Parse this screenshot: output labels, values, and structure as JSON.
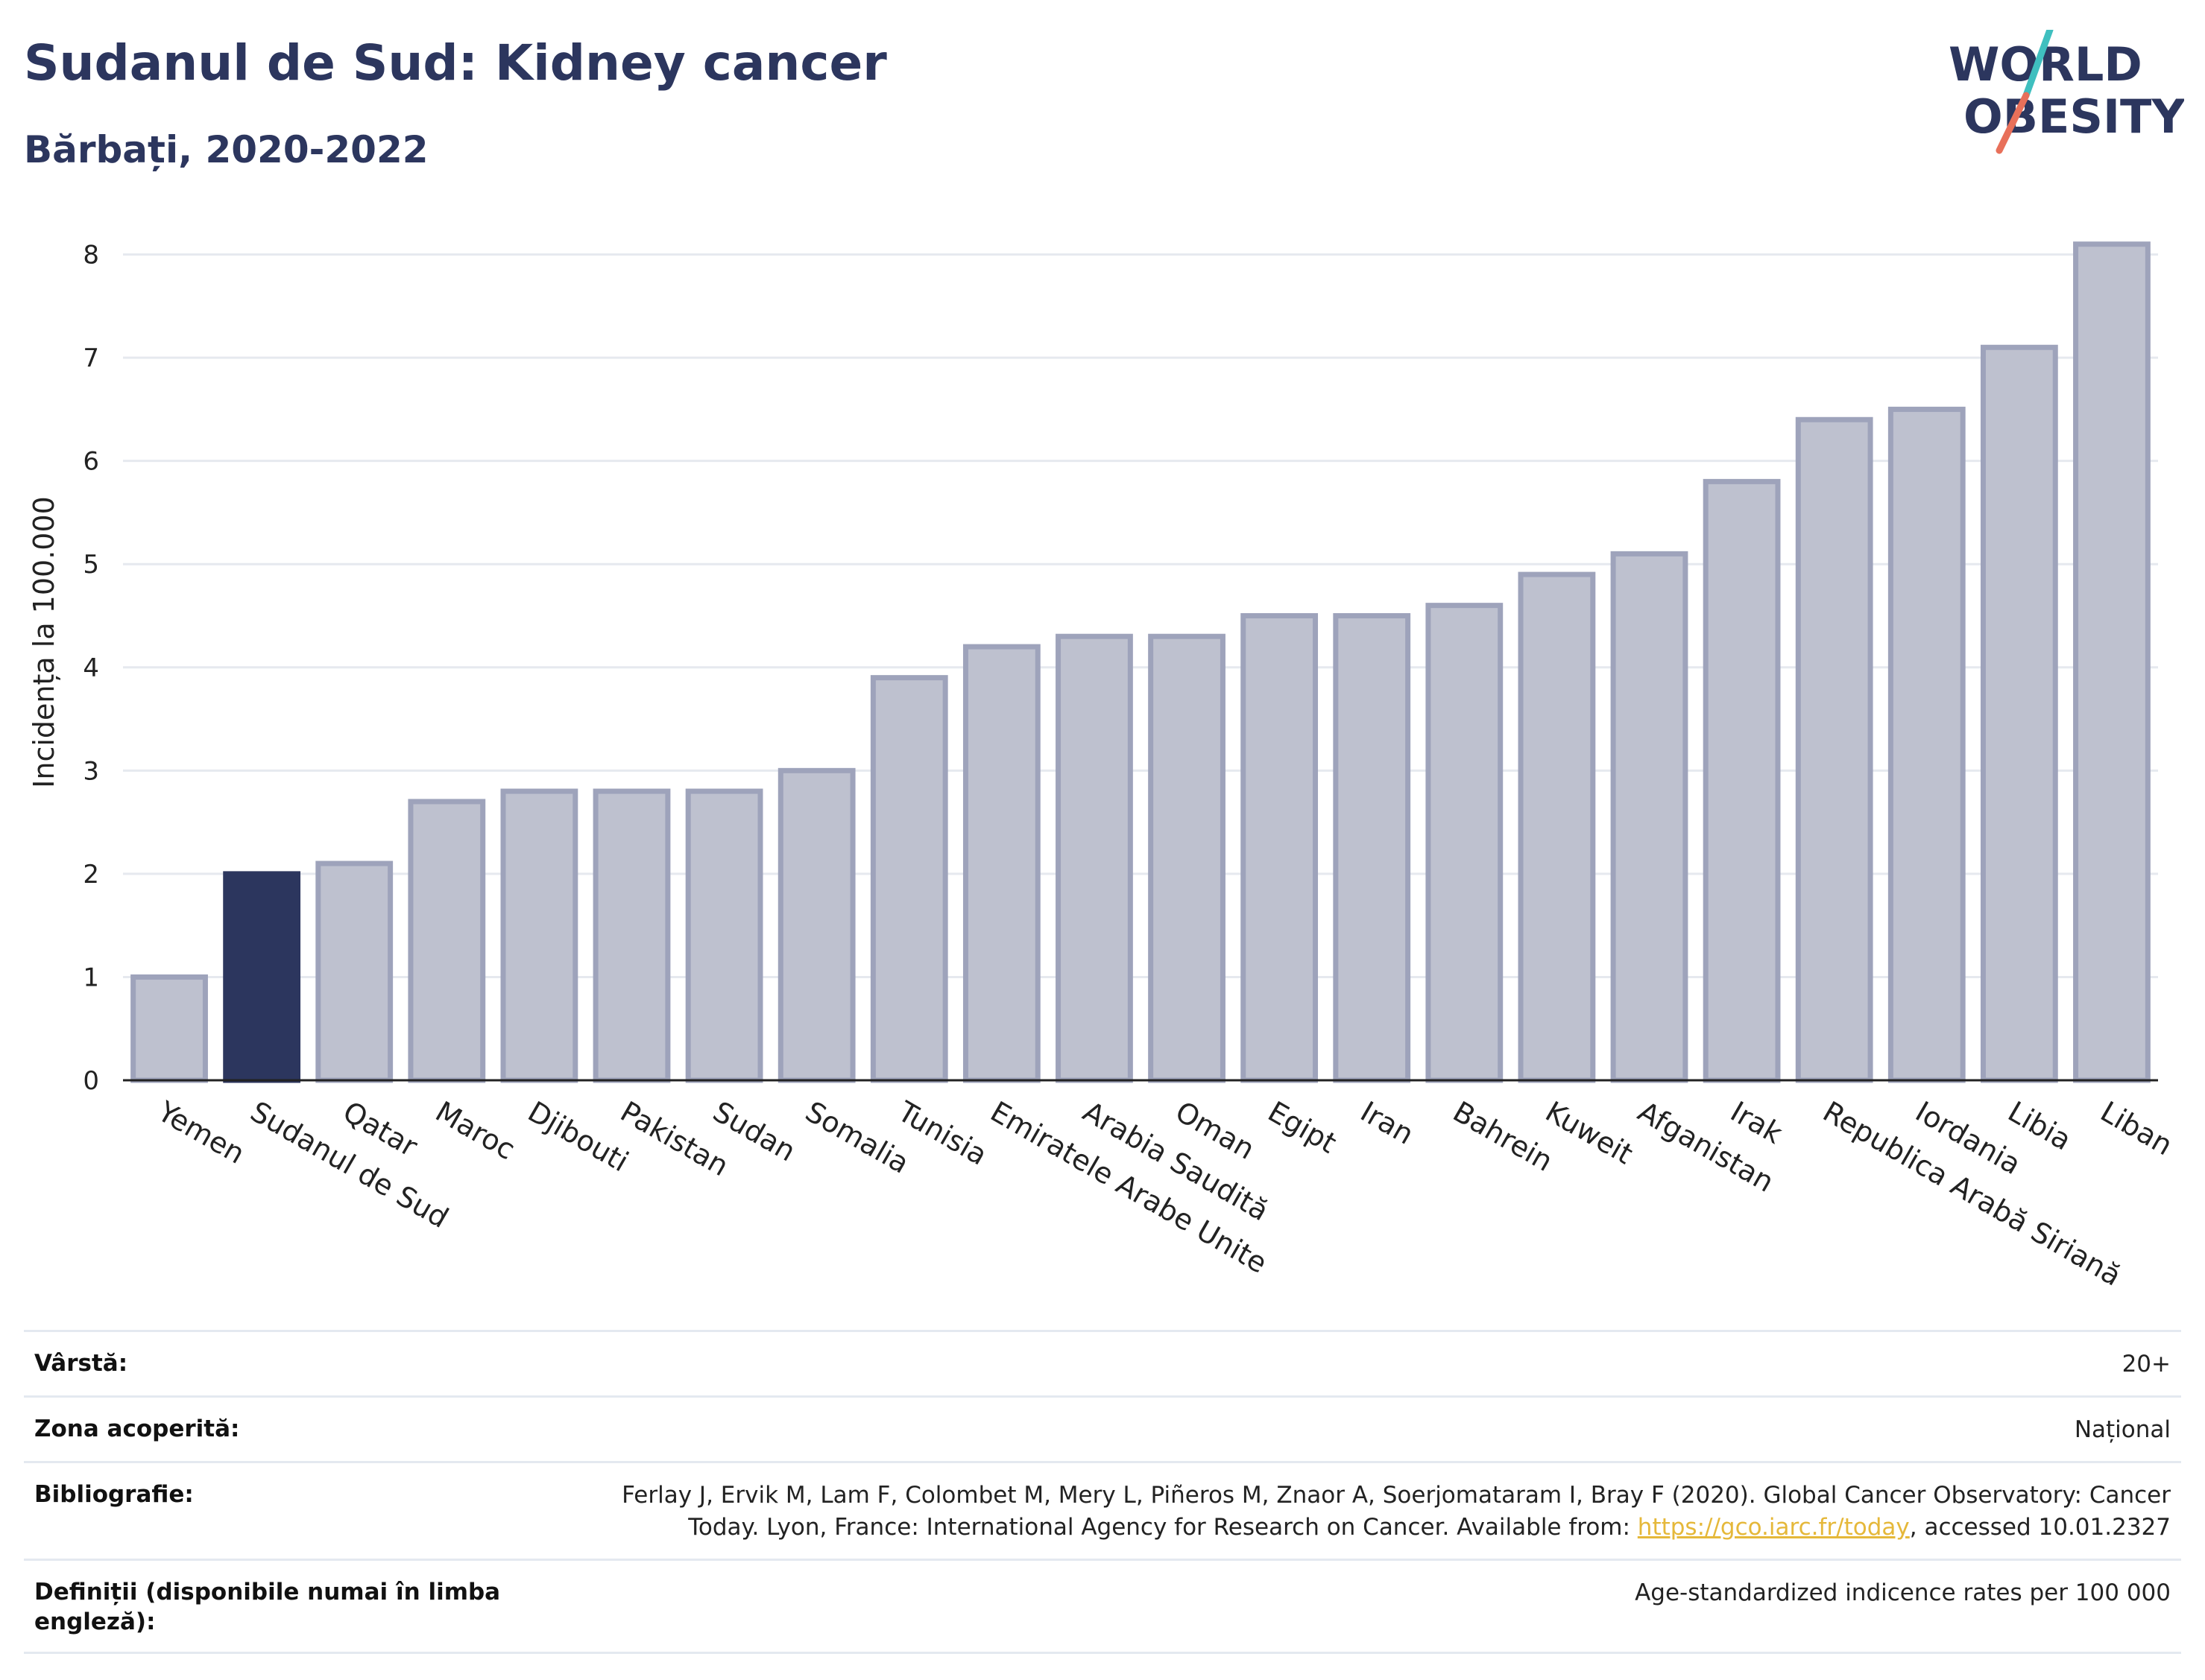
{
  "header": {
    "title": "Sudanul de Sud: Kidney cancer",
    "subtitle": "Bărbați, 2020-2022"
  },
  "logo": {
    "line1": "WORLD",
    "line2": "OBESITY",
    "colors": {
      "text": "#2c365e",
      "slash_top": "#3fbfbf",
      "slash_bottom": "#e8705a"
    }
  },
  "colors": {
    "highlight": "#2c365e",
    "bar_fill": "#bec1cf",
    "bar_stroke": "#9ea3bb",
    "grid": "#e6e9ef",
    "axis": "#222222"
  },
  "chart_data": {
    "type": "bar",
    "title": "Sudanul de Sud: Kidney cancer",
    "subtitle": "Bărbați, 2020-2022",
    "xlabel": "",
    "ylabel": "Incidența la 100.000",
    "ylim": [
      0,
      8.3
    ],
    "yticks": [
      0,
      1,
      2,
      3,
      4,
      5,
      6,
      7,
      8
    ],
    "grid": true,
    "highlight_category": "Sudanul de Sud",
    "categories": [
      "Yemen",
      "Sudanul de Sud",
      "Qatar",
      "Maroc",
      "Djibouti",
      "Pakistan",
      "Sudan",
      "Somalia",
      "Tunisia",
      "Emiratele Arabe Unite",
      "Arabia Saudită",
      "Oman",
      "Egipt",
      "Iran",
      "Bahrein",
      "Kuweit",
      "Afganistan",
      "Irak",
      "Republica Arabă Siriană",
      "Iordania",
      "Libia",
      "Liban"
    ],
    "values": [
      1.0,
      2.0,
      2.1,
      2.7,
      2.8,
      2.8,
      2.8,
      3.0,
      3.9,
      4.2,
      4.3,
      4.3,
      4.5,
      4.5,
      4.6,
      4.9,
      5.1,
      5.8,
      6.4,
      6.5,
      7.1,
      8.1
    ]
  },
  "info": {
    "age_label": "Vârstă:",
    "age_value": "20+",
    "area_label": "Zona acoperită:",
    "area_value": "Național",
    "biblio_label": "Bibliografie:",
    "biblio_line1": "Ferlay J, Ervik M, Lam F, Colombet M, Mery L, Piñeros M, Znaor A, Soerjomataram I, Bray F (2020). Global Cancer Observatory: Cancer",
    "biblio_line2_pre": "Today. Lyon, France: International Agency for Research on Cancer. Available from: ",
    "biblio_link": "https://gco.iarc.fr/today",
    "biblio_line2_post": ", accessed 10.01.2327",
    "def_label": "Definiții (disponibile numai în limba engleză):",
    "def_value": "Age-standardized indicence rates per 100 000"
  }
}
